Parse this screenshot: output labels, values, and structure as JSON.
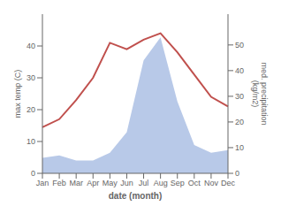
{
  "chart_data": {
    "type": "line",
    "categories": [
      "Jan",
      "Feb",
      "Mar",
      "Apr",
      "May",
      "Jun",
      "Jul",
      "Aug",
      "Sep",
      "Oct",
      "Nov",
      "Dec"
    ],
    "xlabel": "date (month)",
    "ylabel": "max temp (C)",
    "y2label": "med. precipitation\n(kg/m2)",
    "series": [
      {
        "type": "area",
        "axis": "y2",
        "color": "#b8c9e8",
        "values": [
          6,
          7,
          5,
          5,
          8,
          16,
          44,
          53,
          28,
          11,
          8,
          9
        ]
      },
      {
        "type": "line",
        "color": "#c0504d",
        "values": [
          14.5,
          17,
          23,
          30,
          41,
          39,
          42,
          44,
          38,
          31,
          24,
          21
        ]
      }
    ],
    "ylim": [
      0,
      50
    ],
    "yticks": [
      0,
      10,
      20,
      30,
      40
    ],
    "y2lim": [
      0,
      62
    ],
    "y2ticks": [
      0,
      10,
      20,
      30,
      40,
      50
    ]
  }
}
